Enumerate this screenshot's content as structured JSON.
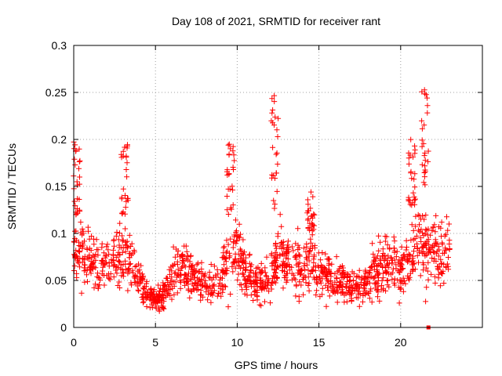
{
  "chart_data": {
    "type": "scatter",
    "title": "Day 108 of 2021, SRMTID for receiver rant",
    "xlabel": "GPS time / hours",
    "ylabel": "SRMTID / TECUs",
    "xlim": [
      0,
      25
    ],
    "ylim": [
      0,
      0.3
    ],
    "x_ticks": [
      "0",
      "5",
      "10",
      "15",
      "20"
    ],
    "x_tick_values": [
      0,
      5,
      10,
      15,
      20
    ],
    "y_ticks": [
      "0",
      "0.05",
      "0.1",
      "0.15",
      "0.2",
      "0.25",
      "0.3"
    ],
    "y_tick_values": [
      0,
      0.05,
      0.1,
      0.15,
      0.2,
      0.25,
      0.3
    ],
    "grid": true,
    "marker": "+",
    "series_color": "#ff0000",
    "data_hours_range": [
      0,
      23
    ],
    "profile": {
      "x": [
        0.0,
        0.5,
        1.0,
        1.5,
        2.0,
        2.5,
        3.0,
        3.5,
        4.0,
        4.5,
        5.0,
        5.5,
        6.0,
        6.5,
        7.0,
        7.5,
        8.0,
        8.5,
        9.0,
        9.5,
        10.0,
        10.5,
        11.0,
        11.5,
        12.0,
        12.5,
        13.0,
        13.5,
        14.0,
        14.5,
        15.0,
        15.5,
        16.0,
        16.5,
        17.0,
        17.5,
        18.0,
        18.5,
        19.0,
        19.5,
        20.0,
        20.5,
        21.0,
        21.5,
        22.0,
        22.5,
        23.0
      ],
      "median": [
        0.08,
        0.08,
        0.07,
        0.065,
        0.065,
        0.075,
        0.08,
        0.07,
        0.05,
        0.035,
        0.03,
        0.035,
        0.05,
        0.065,
        0.06,
        0.05,
        0.045,
        0.045,
        0.05,
        0.075,
        0.08,
        0.06,
        0.05,
        0.045,
        0.05,
        0.08,
        0.07,
        0.065,
        0.065,
        0.07,
        0.06,
        0.055,
        0.05,
        0.05,
        0.045,
        0.045,
        0.05,
        0.06,
        0.065,
        0.065,
        0.06,
        0.075,
        0.085,
        0.09,
        0.08,
        0.08,
        0.085
      ],
      "spread": [
        0.03,
        0.03,
        0.025,
        0.022,
        0.022,
        0.028,
        0.028,
        0.025,
        0.018,
        0.012,
        0.01,
        0.012,
        0.018,
        0.025,
        0.022,
        0.018,
        0.016,
        0.016,
        0.018,
        0.028,
        0.03,
        0.022,
        0.018,
        0.016,
        0.018,
        0.03,
        0.025,
        0.025,
        0.025,
        0.028,
        0.022,
        0.02,
        0.018,
        0.018,
        0.016,
        0.016,
        0.018,
        0.022,
        0.025,
        0.025,
        0.022,
        0.028,
        0.032,
        0.035,
        0.03,
        0.03,
        0.03
      ]
    },
    "spikes": [
      {
        "x": 0.2,
        "y_min": 0.12,
        "y_max": 0.2
      },
      {
        "x": 3.1,
        "y_min": 0.12,
        "y_max": 0.195
      },
      {
        "x": 9.6,
        "y_min": 0.12,
        "y_max": 0.195
      },
      {
        "x": 12.3,
        "y_min": 0.12,
        "y_max": 0.25
      },
      {
        "x": 14.5,
        "y_min": 0.1,
        "y_max": 0.145
      },
      {
        "x": 20.7,
        "y_min": 0.13,
        "y_max": 0.2
      },
      {
        "x": 21.5,
        "y_min": 0.15,
        "y_max": 0.255
      }
    ],
    "outlier": {
      "x": 21.7,
      "y": 0.0
    }
  }
}
